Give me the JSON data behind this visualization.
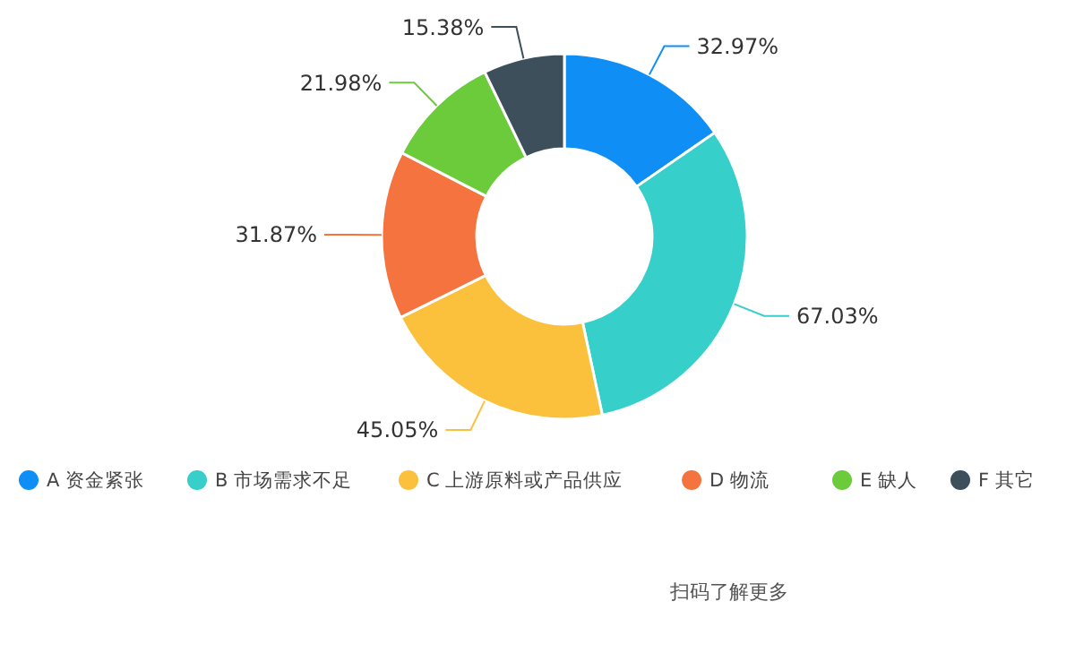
{
  "chart_data": {
    "type": "donut",
    "categories": [
      "A 资金紧张",
      "B 市场需求不足",
      "C 上游原料或产品供应",
      "D 物流",
      "E 缺人",
      "F 其它"
    ],
    "values": [
      32.97,
      67.03,
      45.05,
      31.87,
      21.98,
      15.38
    ],
    "value_labels": [
      "32.97%",
      "67.03%",
      "45.05%",
      "31.87%",
      "21.98%",
      "15.38%"
    ],
    "colors": [
      "#0f8ff5",
      "#36cfc9",
      "#fbc13c",
      "#f5733e",
      "#6ccb3b",
      "#3e4f5c"
    ],
    "legend": "bottom",
    "annotations": [
      "扫码了解更多"
    ]
  }
}
